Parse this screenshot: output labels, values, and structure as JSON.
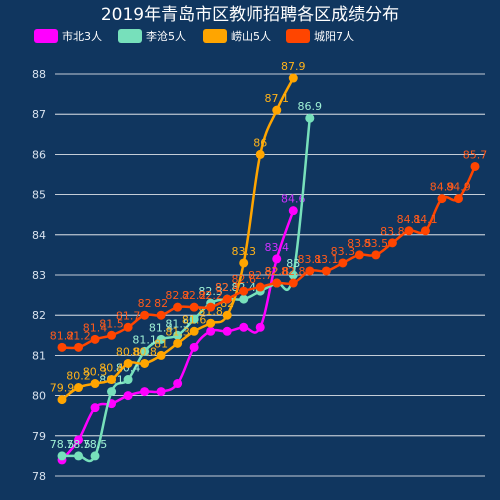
{
  "chart_data": {
    "type": "line",
    "title": "2019年青岛市区教师招聘各区成绩分布",
    "legend_position": "top-left",
    "grid": true,
    "xlabel": "",
    "ylabel": "",
    "ylim": [
      78,
      88
    ],
    "yticks": [
      78,
      79,
      80,
      81,
      82,
      83,
      84,
      85,
      86,
      87,
      88
    ],
    "smooth": true,
    "series": [
      {
        "name": "市北3人",
        "color": "#ff00ff",
        "label_color": "#cc33ff",
        "values": [
          78.4,
          78.9,
          79.7,
          79.8,
          80.0,
          80.1,
          80.1,
          80.3,
          81.2,
          81.6,
          81.6,
          81.7,
          81.7,
          83.4,
          84.6
        ],
        "labels": [
          "",
          "",
          "",
          "",
          "",
          "",
          "",
          "",
          "",
          "",
          "",
          "",
          "",
          "83.4",
          "84.6"
        ]
      },
      {
        "name": "李沧5人",
        "color": "#77e0bb",
        "label_color": "#9ff0d5",
        "values": [
          78.5,
          78.5,
          78.5,
          80.1,
          80.4,
          81.1,
          81.4,
          81.5,
          81.9,
          82.3,
          82.4,
          82.4,
          82.6,
          82.8,
          83.0,
          86.9
        ],
        "labels": [
          "78.5",
          "78.5",
          "78.5",
          "80.1",
          "80.4",
          "81.1",
          "81.4",
          "81.5",
          "",
          "82.3",
          "82.4",
          "82.4",
          "",
          "82.8",
          "83",
          "86.9"
        ]
      },
      {
        "name": "崂山5人",
        "color": "#ffa500",
        "label_color": "#ffb31a",
        "values": [
          79.9,
          80.2,
          80.3,
          80.4,
          80.8,
          80.8,
          81.0,
          81.3,
          81.6,
          81.8,
          82.0,
          83.3,
          86.0,
          87.1,
          87.9
        ],
        "labels": [
          "79.9",
          "80.2",
          "80.3",
          "80.4",
          "80.8",
          "80.8",
          "81",
          "81.3",
          "81.6",
          "81.8",
          "82",
          "83.3",
          "86",
          "87.1",
          "87.9"
        ]
      },
      {
        "name": "城阳7人",
        "color": "#ff4500",
        "label_color": "#ff5a1a",
        "values": [
          81.2,
          81.2,
          81.4,
          81.5,
          81.7,
          82.0,
          82.0,
          82.2,
          82.2,
          82.2,
          82.4,
          82.6,
          82.7,
          82.8,
          82.8,
          83.1,
          83.1,
          83.3,
          83.5,
          83.5,
          83.8,
          84.1,
          84.1,
          84.9,
          84.9,
          85.7
        ],
        "labels": [
          "81.2",
          "81.2",
          "81.4",
          "81.5",
          "81.7",
          "82",
          "82",
          "82.2",
          "82.2",
          "82.2",
          "82.4",
          "82.6",
          "82.7",
          "82.8",
          "82.8",
          "83.1",
          "83.1",
          "83.3",
          "83.5",
          "83.5",
          "83.8",
          "84.1",
          "84.1",
          "84.9",
          "84.9",
          "85.7"
        ]
      }
    ]
  }
}
